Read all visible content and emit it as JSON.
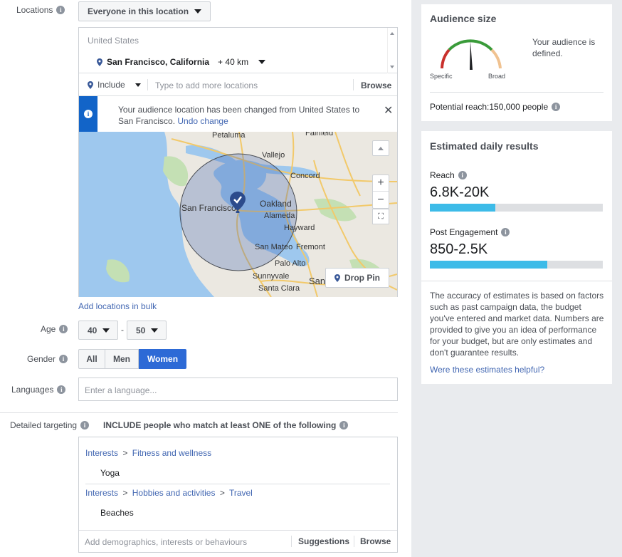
{
  "locations": {
    "label": "Locations",
    "dropdown": "Everyone in this location",
    "country": "United States",
    "city": "San Francisco, California",
    "radius": "+ 40 km",
    "include": "Include",
    "add_placeholder": "Type to add more locations",
    "browse": "Browse",
    "notice": "Your audience location has been changed from United States to San Francisco.",
    "undo": "Undo change",
    "drop_pin": "Drop Pin",
    "bulk": "Add locations in bulk",
    "map_labels": {
      "petaluma": "Petaluma",
      "fairfield": "Fairfield",
      "vallejo": "Vallejo",
      "concord": "Concord",
      "sf": "San Francisco",
      "oakland": "Oakland",
      "alameda": "Alameda",
      "hayward": "Hayward",
      "san_mateo": "San Mateo",
      "fremont": "Fremont",
      "palo_alto": "Palo Alto",
      "sunnyvale": "Sunnyvale",
      "santa_clara": "Santa Clara",
      "san": "San"
    }
  },
  "age": {
    "label": "Age",
    "min": "40",
    "dash": "-",
    "max": "50"
  },
  "gender": {
    "label": "Gender",
    "all": "All",
    "men": "Men",
    "women": "Women",
    "selected": "Women"
  },
  "languages": {
    "label": "Languages",
    "placeholder": "Enter a language..."
  },
  "detailed": {
    "label": "Detailed targeting",
    "include_text": "INCLUDE people who match at least ONE of the following",
    "groups": [
      {
        "path": [
          "Interests",
          "Fitness and wellness"
        ],
        "item": "Yoga"
      },
      {
        "path": [
          "Interests",
          "Hobbies and activities",
          "Travel"
        ],
        "item": "Beaches"
      }
    ],
    "sep": ">",
    "add_placeholder": "Add demographics, interests or behaviours",
    "suggestions": "Suggestions",
    "browse": "Browse"
  },
  "audience": {
    "title": "Audience size",
    "specific": "Specific",
    "broad": "Broad",
    "defined": "Your audience is defined.",
    "reach": "Potential reach:150,000 people"
  },
  "estimated": {
    "title": "Estimated daily results",
    "reach_label": "Reach",
    "reach_value": "6.8K-20K",
    "reach_fill": 0.38,
    "engagement_label": "Post Engagement",
    "engagement_value": "850-2.5K",
    "engagement_fill": 0.68,
    "disclaimer": "The accuracy of estimates is based on factors such as past campaign data, the budget you've entered and market data. Numbers are provided to give you an idea of performance for your budget, but are only estimates and don't guarantee results.",
    "helpful": "Were these estimates helpful?"
  },
  "colors": {
    "accent": "#4267b2",
    "bar": "#3dbbe8",
    "notice": "#1264c8",
    "women_btn": "#2d6ad6"
  }
}
